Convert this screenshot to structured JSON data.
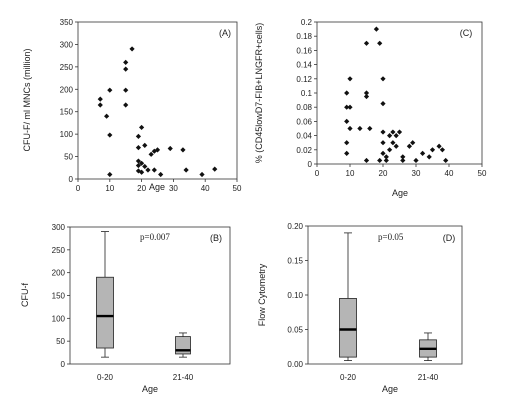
{
  "chart_data": [
    {
      "id": "A",
      "type": "scatter",
      "panel_label": "(A)",
      "xlabel": "Age",
      "ylabel": "CFU-F/ ml MNCs (million)",
      "xlim": [
        0,
        50
      ],
      "ylim": [
        0,
        350
      ],
      "xticks": [
        0,
        10,
        20,
        30,
        40,
        50
      ],
      "yticks": [
        0,
        50,
        100,
        150,
        200,
        250,
        300,
        350
      ],
      "points": [
        [
          7,
          178
        ],
        [
          7,
          165
        ],
        [
          9,
          140
        ],
        [
          10,
          198
        ],
        [
          10,
          98
        ],
        [
          10,
          10
        ],
        [
          15,
          260
        ],
        [
          15,
          245
        ],
        [
          15,
          198
        ],
        [
          15,
          165
        ],
        [
          17,
          290
        ],
        [
          19,
          95
        ],
        [
          19,
          70
        ],
        [
          19,
          40
        ],
        [
          19,
          30
        ],
        [
          19,
          18
        ],
        [
          20,
          115
        ],
        [
          20,
          35
        ],
        [
          20,
          15
        ],
        [
          21,
          75
        ],
        [
          21,
          28
        ],
        [
          22,
          20
        ],
        [
          23,
          55
        ],
        [
          24,
          62
        ],
        [
          24,
          20
        ],
        [
          25,
          65
        ],
        [
          26,
          10
        ],
        [
          29,
          68
        ],
        [
          33,
          65
        ],
        [
          34,
          20
        ],
        [
          39,
          10
        ],
        [
          43,
          22
        ]
      ]
    },
    {
      "id": "C",
      "type": "scatter",
      "panel_label": "(C)",
      "xlabel": "Age",
      "ylabel": "% (CD45lowD7-FIB+LNGFR+cells)",
      "xlim": [
        0,
        50
      ],
      "ylim": [
        0,
        0.2
      ],
      "xticks": [
        0,
        10,
        20,
        30,
        40,
        50
      ],
      "yticks": [
        0,
        0.02,
        0.04,
        0.06,
        0.08,
        0.1,
        0.12,
        0.14,
        0.16,
        0.18,
        0.2
      ],
      "points": [
        [
          9,
          0.1
        ],
        [
          9,
          0.08
        ],
        [
          9,
          0.06
        ],
        [
          9,
          0.03
        ],
        [
          9,
          0.015
        ],
        [
          10,
          0.12
        ],
        [
          10,
          0.08
        ],
        [
          10,
          0.05
        ],
        [
          13,
          0.05
        ],
        [
          15,
          0.17
        ],
        [
          15,
          0.1
        ],
        [
          15,
          0.095
        ],
        [
          15,
          0.005
        ],
        [
          16,
          0.05
        ],
        [
          18,
          0.19
        ],
        [
          19,
          0.17
        ],
        [
          19,
          0.005
        ],
        [
          20,
          0.12
        ],
        [
          20,
          0.085
        ],
        [
          20,
          0.045
        ],
        [
          20,
          0.03
        ],
        [
          20,
          0.015
        ],
        [
          21,
          0.01
        ],
        [
          21,
          0.005
        ],
        [
          22,
          0.04
        ],
        [
          22,
          0.02
        ],
        [
          23,
          0.045
        ],
        [
          23,
          0.03
        ],
        [
          24,
          0.04
        ],
        [
          24,
          0.025
        ],
        [
          25,
          0.045
        ],
        [
          26,
          0.01
        ],
        [
          26,
          0.005
        ],
        [
          28,
          0.025
        ],
        [
          29,
          0.03
        ],
        [
          30,
          0.005
        ],
        [
          32,
          0.015
        ],
        [
          34,
          0.01
        ],
        [
          35,
          0.02
        ],
        [
          37,
          0.025
        ],
        [
          38,
          0.02
        ],
        [
          39,
          0.005
        ]
      ]
    },
    {
      "id": "B",
      "type": "box",
      "panel_label": "(B)",
      "annotation": "p=0.007",
      "xlabel": "Age",
      "ylabel": "CFU-f",
      "ylim": [
        0,
        300
      ],
      "yticks": [
        0,
        50,
        100,
        150,
        200,
        250,
        300
      ],
      "categories": [
        "0-20",
        "21-40"
      ],
      "boxes": [
        {
          "min": 15,
          "q1": 35,
          "median": 105,
          "q3": 190,
          "max": 290
        },
        {
          "min": 15,
          "q1": 22,
          "median": 30,
          "q3": 60,
          "max": 68
        }
      ]
    },
    {
      "id": "D",
      "type": "box",
      "panel_label": "(D)",
      "annotation": "p=0.05",
      "xlabel": "Age",
      "ylabel": "Flow Cytometry",
      "ylim": [
        0,
        0.2
      ],
      "yticks": [
        "0.00",
        "0.05",
        "0.10",
        "0.15",
        "0.20"
      ],
      "categories": [
        "0-20",
        "21-40"
      ],
      "boxes": [
        {
          "min": 0.005,
          "q1": 0.01,
          "median": 0.05,
          "q3": 0.095,
          "max": 0.19
        },
        {
          "min": 0.005,
          "q1": 0.01,
          "median": 0.022,
          "q3": 0.035,
          "max": 0.045
        }
      ]
    }
  ]
}
